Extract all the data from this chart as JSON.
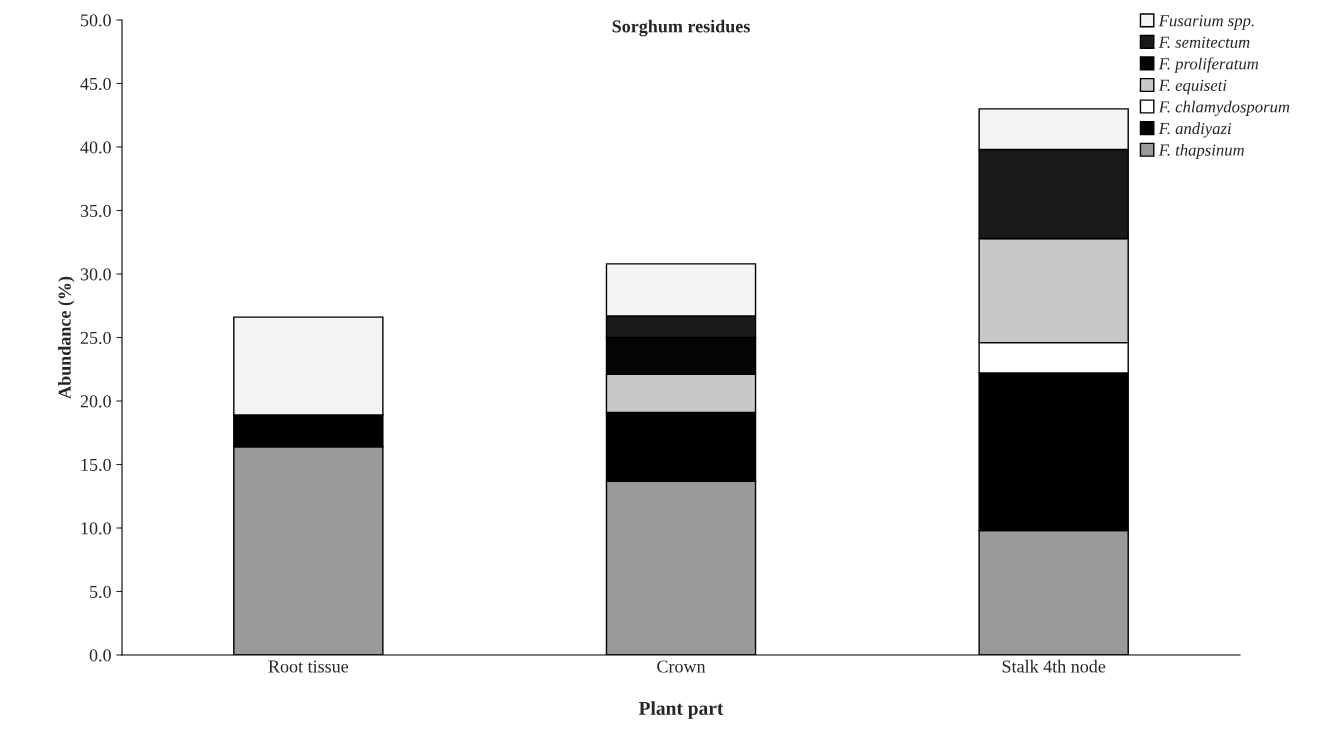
{
  "chart_data": {
    "type": "bar",
    "title": "Sorghum residues",
    "xlabel": "Plant part",
    "ylabel": "Abundance (%)",
    "categories": [
      "Root tissue",
      "Crown",
      "Stalk 4th node"
    ],
    "stacked": true,
    "legend": "top right",
    "grid": false,
    "ylim": [
      0,
      50
    ],
    "yticks": [
      {
        "value": 0,
        "label": "0.0"
      },
      {
        "value": 5,
        "label": "5.0"
      },
      {
        "value": 10,
        "label": "10.0"
      },
      {
        "value": 15,
        "label": "15.0"
      },
      {
        "value": 20,
        "label": "20.0"
      },
      {
        "value": 25,
        "label": "25.0"
      },
      {
        "value": 30,
        "label": "30.0"
      },
      {
        "value": 35,
        "label": "35.0"
      },
      {
        "value": 40,
        "label": "40.0"
      },
      {
        "value": 45,
        "label": "45.0"
      },
      {
        "value": 50,
        "label": "50.0"
      }
    ],
    "series": [
      {
        "name": "F. thapsinum",
        "color": "#9a9a9a",
        "values": [
          16.4,
          13.7,
          9.8
        ]
      },
      {
        "name": "F. andiyazi",
        "color": "#000000",
        "values": [
          2.5,
          5.4,
          12.4
        ]
      },
      {
        "name": "F. chlamydosporum",
        "color": "#ffffff",
        "values": [
          0,
          0,
          2.4
        ]
      },
      {
        "name": "F. equiseti",
        "color": "#c8c8c8",
        "values": [
          0,
          3.0,
          8.2
        ]
      },
      {
        "name": "F. proliferatum",
        "color": "#050505",
        "values": [
          0,
          2.9,
          0
        ]
      },
      {
        "name": "F. semitectum",
        "color": "#1a1a1a",
        "values": [
          0,
          1.7,
          7.0
        ]
      },
      {
        "name": "Fusarium spp.",
        "color": "#f4f4f4",
        "values": [
          7.7,
          4.1,
          3.2
        ]
      }
    ]
  }
}
